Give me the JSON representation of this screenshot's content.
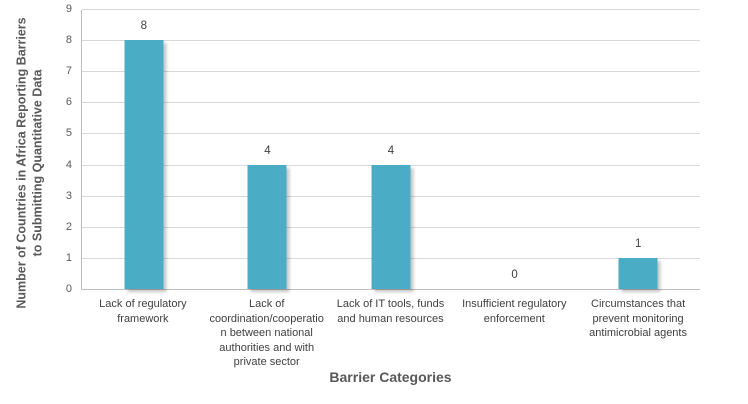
{
  "chart_data": {
    "type": "bar",
    "title": "",
    "categories": [
      "Lack of regulatory framework",
      "Lack of coordination/cooperation between national authorities and with private sector",
      "Lack of IT tools, funds and human resources",
      "Insufficient regulatory enforcement",
      "Circumstances that prevent monitoring antimicrobial agents"
    ],
    "values": [
      8,
      4,
      4,
      0,
      1
    ],
    "data_labels": [
      "8",
      "4",
      "4",
      "0",
      "1"
    ],
    "xlabel": "Barrier Categories",
    "ylabel": "Number of Countries in Africa Reporting Barriers to Submitting Quantitative Data",
    "ylim": [
      0,
      9
    ],
    "yticks": [
      "0",
      "1",
      "2",
      "3",
      "4",
      "5",
      "6",
      "7",
      "8",
      "9"
    ],
    "grid": true,
    "legend": false,
    "colors": {
      "bar": "#4bacc6",
      "gridline": "#d9d9d9",
      "axis_line": "#bfbfbf",
      "tick_text": "#595959",
      "label_text": "#404040",
      "axis_title_text": "#595959",
      "background": "#ffffff"
    }
  }
}
